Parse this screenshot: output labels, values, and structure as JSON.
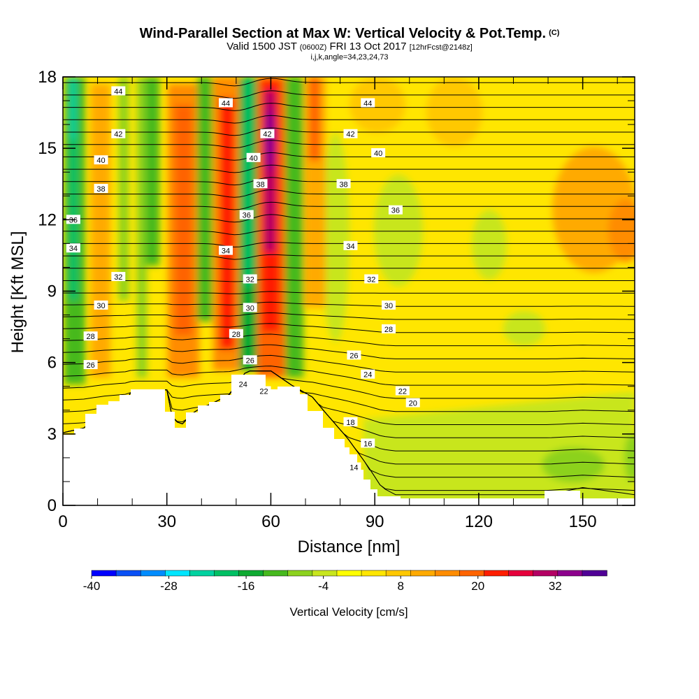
{
  "header": {
    "title": "Wind-Parallel Section at Max W: Vertical Velocity & Pot.Temp.",
    "copyright": "(C)",
    "valid_prefix": "Valid 1500 JST",
    "valid_utc": "(0600Z)",
    "valid_date": "FRI 13 Oct 2017",
    "forecast": "[12hrFcst@2148z]",
    "indices": "i,j,k,angle=34,23,24,73"
  },
  "chart_data": {
    "type": "heatmap",
    "xlabel": "Distance [nm]",
    "ylabel": "Height [Kft MSL]",
    "xlim": [
      0,
      165
    ],
    "ylim": [
      0,
      18
    ],
    "x_ticks": [
      0,
      30,
      60,
      90,
      120,
      150
    ],
    "y_ticks": [
      0,
      3,
      6,
      9,
      12,
      15,
      18
    ],
    "x_tick_labels": [
      "0",
      "30",
      "60",
      "90",
      "120",
      "150"
    ],
    "y_tick_labels": [
      "0",
      "3",
      "6",
      "9",
      "12",
      "15",
      "18"
    ],
    "colorbar": {
      "label": "Vertical Velocity [cm/s]",
      "min": -40,
      "max": 40,
      "step": 4,
      "tick_values": [
        -40,
        -28,
        -16,
        -4,
        8,
        20,
        32
      ],
      "tick_labels": [
        "-40",
        "-28",
        "-16",
        "-4",
        "8",
        "20",
        "32"
      ],
      "colors": [
        "#0000ff",
        "#0a50f5",
        "#008cff",
        "#00e6ff",
        "#00d2a0",
        "#00c064",
        "#0faa32",
        "#46b91e",
        "#8cd21e",
        "#c8e61e",
        "#ffff00",
        "#ffe600",
        "#ffc800",
        "#ffaa00",
        "#ff8c00",
        "#ff6400",
        "#ff1e00",
        "#e6003c",
        "#b40064",
        "#8c008c",
        "#500096"
      ]
    },
    "theta_contour_labels": [
      {
        "value": "44",
        "x": 16,
        "y": 17.4
      },
      {
        "value": "44",
        "x": 47,
        "y": 16.9
      },
      {
        "value": "44",
        "x": 88,
        "y": 16.9
      },
      {
        "value": "42",
        "x": 16,
        "y": 15.6
      },
      {
        "value": "42",
        "x": 59,
        "y": 15.6
      },
      {
        "value": "42",
        "x": 83,
        "y": 15.6
      },
      {
        "value": "40",
        "x": 11,
        "y": 14.5
      },
      {
        "value": "40",
        "x": 55,
        "y": 14.6
      },
      {
        "value": "40",
        "x": 91,
        "y": 14.8
      },
      {
        "value": "38",
        "x": 11,
        "y": 13.3
      },
      {
        "value": "38",
        "x": 57,
        "y": 13.5
      },
      {
        "value": "38",
        "x": 81,
        "y": 13.5
      },
      {
        "value": "36",
        "x": 3,
        "y": 12.0
      },
      {
        "value": "36",
        "x": 53,
        "y": 12.2
      },
      {
        "value": "36",
        "x": 96,
        "y": 12.4
      },
      {
        "value": "34",
        "x": 3,
        "y": 10.8
      },
      {
        "value": "34",
        "x": 47,
        "y": 10.7
      },
      {
        "value": "34",
        "x": 83,
        "y": 10.9
      },
      {
        "value": "32",
        "x": 16,
        "y": 9.6
      },
      {
        "value": "32",
        "x": 54,
        "y": 9.5
      },
      {
        "value": "32",
        "x": 89,
        "y": 9.5
      },
      {
        "value": "30",
        "x": 11,
        "y": 8.4
      },
      {
        "value": "30",
        "x": 54,
        "y": 8.3
      },
      {
        "value": "30",
        "x": 94,
        "y": 8.4
      },
      {
        "value": "28",
        "x": 8,
        "y": 7.1
      },
      {
        "value": "28",
        "x": 50,
        "y": 7.2
      },
      {
        "value": "28",
        "x": 94,
        "y": 7.4
      },
      {
        "value": "26",
        "x": 8,
        "y": 5.9
      },
      {
        "value": "26",
        "x": 54,
        "y": 6.1
      },
      {
        "value": "26",
        "x": 84,
        "y": 6.3
      },
      {
        "value": "24",
        "x": 52,
        "y": 5.1
      },
      {
        "value": "24",
        "x": 88,
        "y": 5.5
      },
      {
        "value": "22",
        "x": 58,
        "y": 4.8
      },
      {
        "value": "22",
        "x": 98,
        "y": 4.8
      },
      {
        "value": "20",
        "x": 101,
        "y": 4.3
      },
      {
        "value": "18",
        "x": 83,
        "y": 3.5
      },
      {
        "value": "16",
        "x": 88,
        "y": 2.6
      },
      {
        "value": "14",
        "x": 84,
        "y": 1.6
      }
    ]
  }
}
